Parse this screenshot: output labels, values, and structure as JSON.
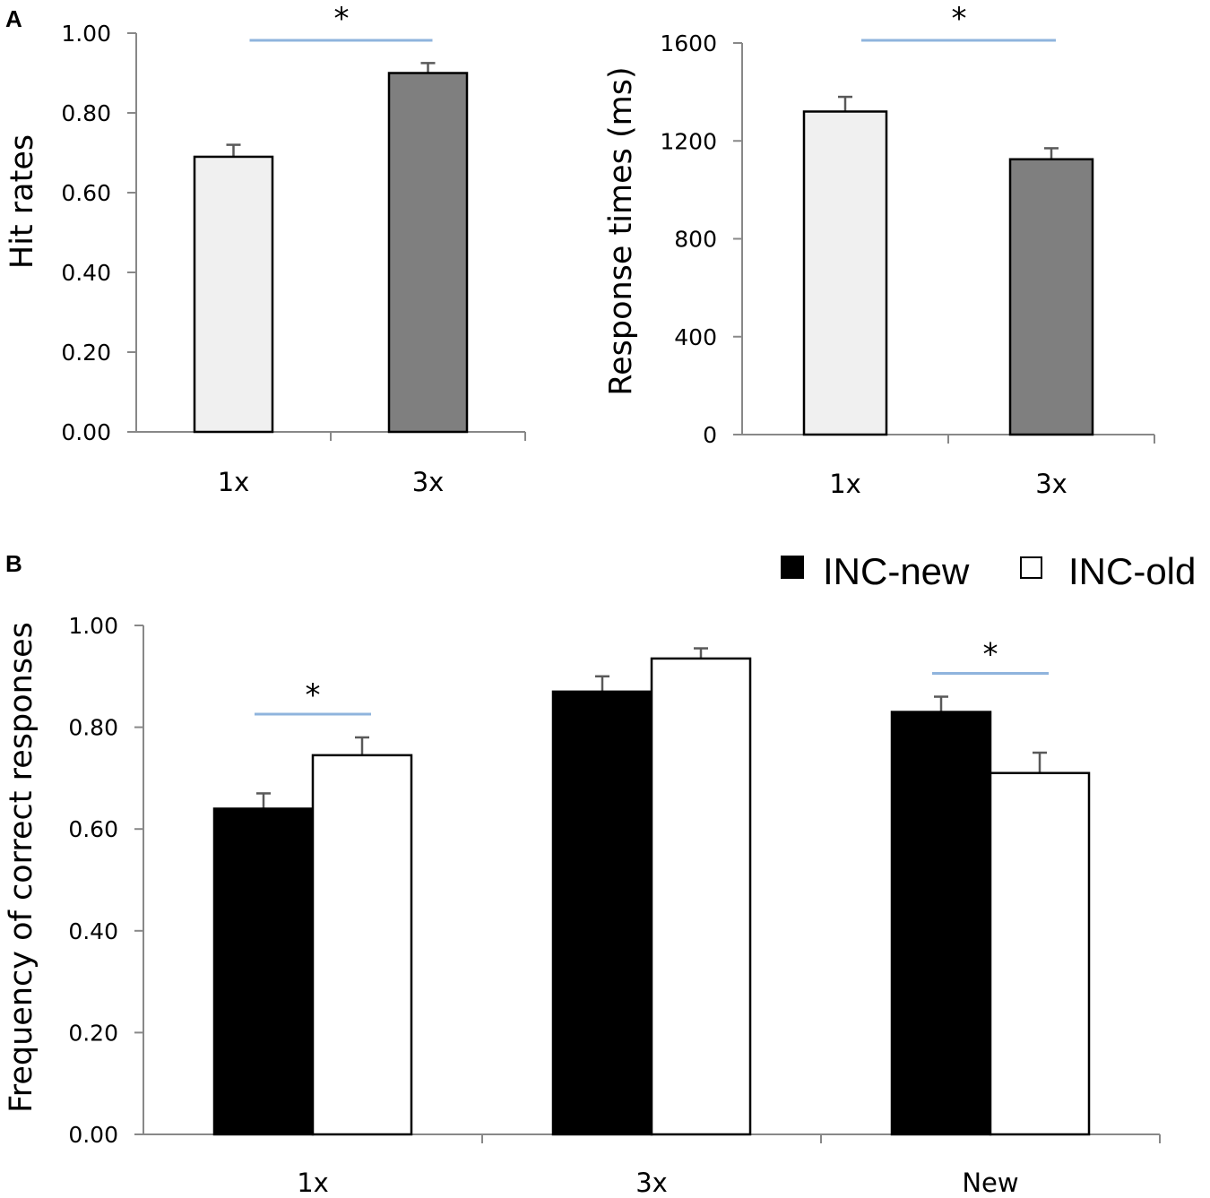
{
  "colors": {
    "light_bar": "#f0f0f0",
    "dark_bar": "#7f7f7f",
    "inc_new": "#000000",
    "inc_old": "#ffffff",
    "significance_line": "#8fb4dd",
    "axis": "#888888",
    "error_bar": "#595959"
  },
  "chart_data": [
    {
      "panel": "A",
      "type": "bar",
      "title": "",
      "xlabel": "",
      "ylabel": "Hit rates",
      "categories": [
        "1x",
        "3x"
      ],
      "values": [
        0.69,
        0.9
      ],
      "errors": [
        0.03,
        0.025
      ],
      "bar_colors": [
        "#f0f0f0",
        "#7f7f7f"
      ],
      "ylim": [
        0,
        1.0
      ],
      "yticks": [
        "0.00",
        "0.20",
        "0.40",
        "0.60",
        "0.80",
        "1.00"
      ],
      "grid": false,
      "significance": [
        {
          "between": [
            "1x",
            "3x"
          ],
          "label": "*"
        }
      ]
    },
    {
      "type": "bar",
      "title": "",
      "xlabel": "",
      "ylabel": "Response times (ms)",
      "categories": [
        "1x",
        "3x"
      ],
      "values": [
        1320,
        1125
      ],
      "errors": [
        60,
        45
      ],
      "bar_colors": [
        "#f0f0f0",
        "#7f7f7f"
      ],
      "ylim": [
        0,
        1600
      ],
      "yticks": [
        "0",
        "400",
        "800",
        "1200",
        "1600"
      ],
      "grid": false,
      "significance": [
        {
          "between": [
            "1x",
            "3x"
          ],
          "label": "*"
        }
      ]
    },
    {
      "panel": "B",
      "type": "bar",
      "title": "",
      "xlabel": "",
      "ylabel": "Frequency of correct responses",
      "categories": [
        "1x",
        "3x",
        "New"
      ],
      "series": [
        {
          "name": "INC-new",
          "values": [
            0.64,
            0.87,
            0.83
          ],
          "errors": [
            0.03,
            0.03,
            0.03
          ],
          "color": "#000000"
        },
        {
          "name": "INC-old",
          "values": [
            0.745,
            0.935,
            0.71
          ],
          "errors": [
            0.035,
            0.02,
            0.04
          ],
          "color": "#ffffff"
        }
      ],
      "ylim": [
        0,
        1.0
      ],
      "yticks": [
        "0.00",
        "0.20",
        "0.40",
        "0.60",
        "0.80",
        "1.00"
      ],
      "grid": false,
      "legend": "top-right",
      "significance": [
        {
          "category": "1x",
          "label": "*"
        },
        {
          "category": "New",
          "label": "*"
        }
      ]
    }
  ]
}
